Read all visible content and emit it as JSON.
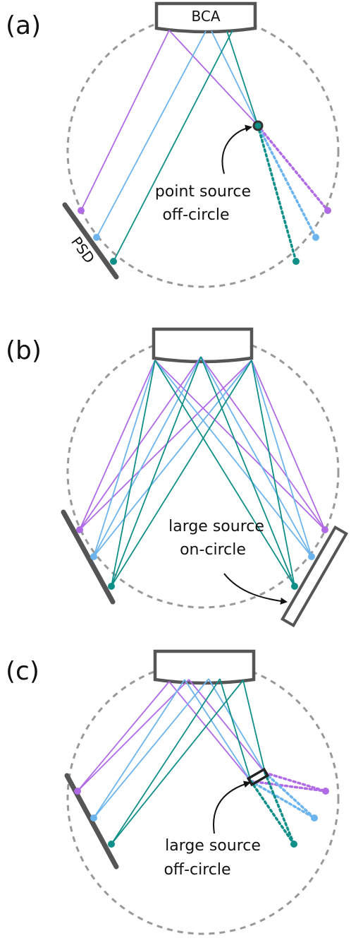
{
  "panels": [
    {
      "label": "(a)",
      "bca": "BCA",
      "psd": "PSD",
      "annotation": [
        "point source",
        "off-circle"
      ]
    },
    {
      "label": "(b)",
      "annotation": [
        "large source",
        "on-circle"
      ]
    },
    {
      "label": "(c)",
      "annotation": [
        "large source",
        "off-circle"
      ]
    }
  ]
}
